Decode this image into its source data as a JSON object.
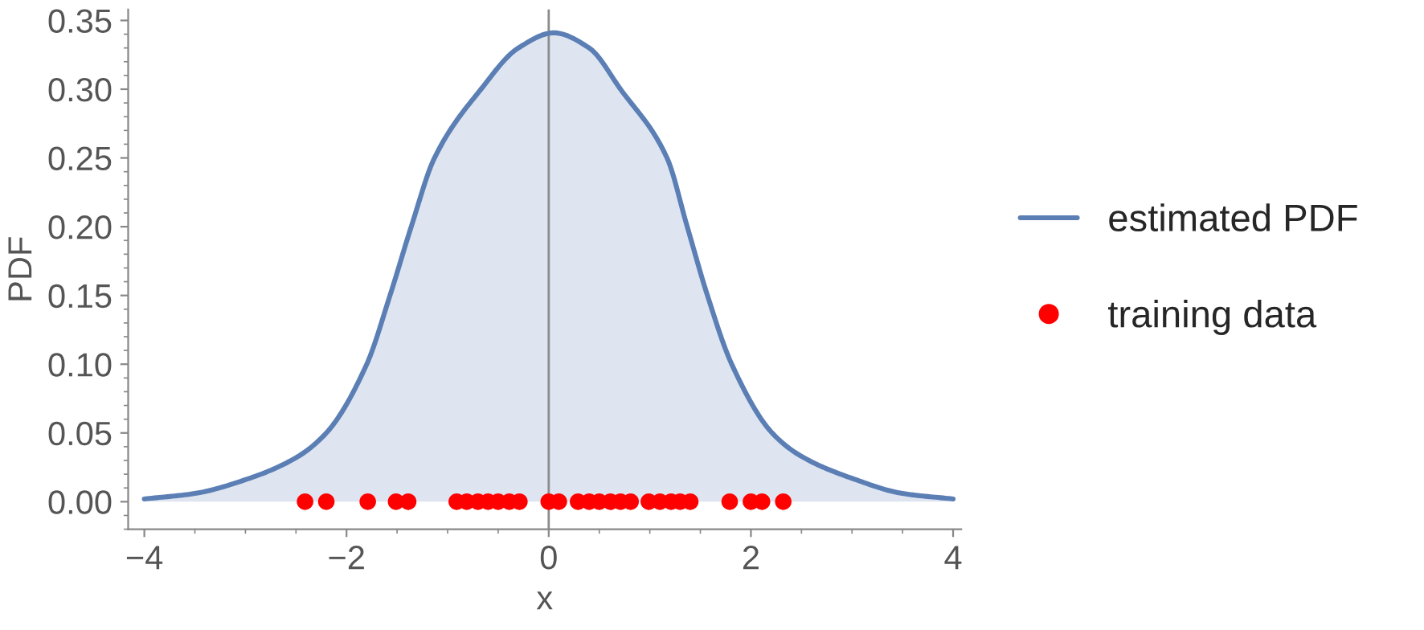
{
  "chart_data": {
    "type": "area",
    "xlabel": "x",
    "ylabel": "PDF",
    "xlim": [
      -4.16,
      4.08
    ],
    "ylim": [
      -0.02,
      0.358
    ],
    "xticks": [
      {
        "value": -4,
        "label": "−4"
      },
      {
        "value": -2,
        "label": "−2"
      },
      0,
      2,
      4
    ],
    "yticks": [
      {
        "value": 0,
        "label": "0.00"
      },
      {
        "value": 0.05,
        "label": "0.05"
      },
      {
        "value": 0.1,
        "label": "0.10"
      },
      {
        "value": 0.15,
        "label": "0.15"
      },
      {
        "value": 0.2,
        "label": "0.20"
      },
      {
        "value": 0.25,
        "label": "0.25"
      },
      {
        "value": 0.3,
        "label": "0.30"
      },
      {
        "value": 0.35,
        "label": "0.35"
      }
    ],
    "grid": false,
    "legend": "right",
    "ref_lines": [
      {
        "axis": "x",
        "value": 0,
        "color": "#8c8c8c"
      }
    ],
    "series": [
      {
        "name": "estimated PDF",
        "color": "#5b7fb5",
        "x": [
          -4,
          -3.5,
          -3,
          -2.5,
          -2.2,
          -1.8,
          -1.57,
          -1.36,
          -1.13,
          -0.67,
          -0.3,
          0.05,
          0.4,
          0.71,
          1.17,
          1.37,
          1.57,
          1.81,
          2.21,
          2.5,
          3,
          3.5,
          4
        ],
        "values": [
          0.002,
          0.006,
          0.016,
          0.032,
          0.05,
          0.1,
          0.15,
          0.2,
          0.25,
          0.3,
          0.33,
          0.341,
          0.33,
          0.3,
          0.25,
          0.2,
          0.15,
          0.1,
          0.05,
          0.033,
          0.017,
          0.006,
          0.002
        ]
      },
      {
        "name": "training data",
        "type": "scatter",
        "color": "#ff0000",
        "marker": "circle",
        "x": [
          -2.41,
          -2.2,
          -1.79,
          -1.51,
          -1.39,
          -0.91,
          -0.81,
          -0.7,
          -0.6,
          -0.5,
          -0.39,
          -0.29,
          0.0,
          0.1,
          0.29,
          0.4,
          0.5,
          0.61,
          0.71,
          0.81,
          0.99,
          1.1,
          1.21,
          1.3,
          1.4,
          1.79,
          2.0,
          2.11,
          2.32
        ],
        "values": [
          0,
          0,
          0,
          0,
          0,
          0,
          0,
          0,
          0,
          0,
          0,
          0,
          0,
          0,
          0,
          0,
          0,
          0,
          0,
          0,
          0,
          0,
          0,
          0,
          0,
          0,
          0,
          0,
          0
        ]
      }
    ]
  }
}
